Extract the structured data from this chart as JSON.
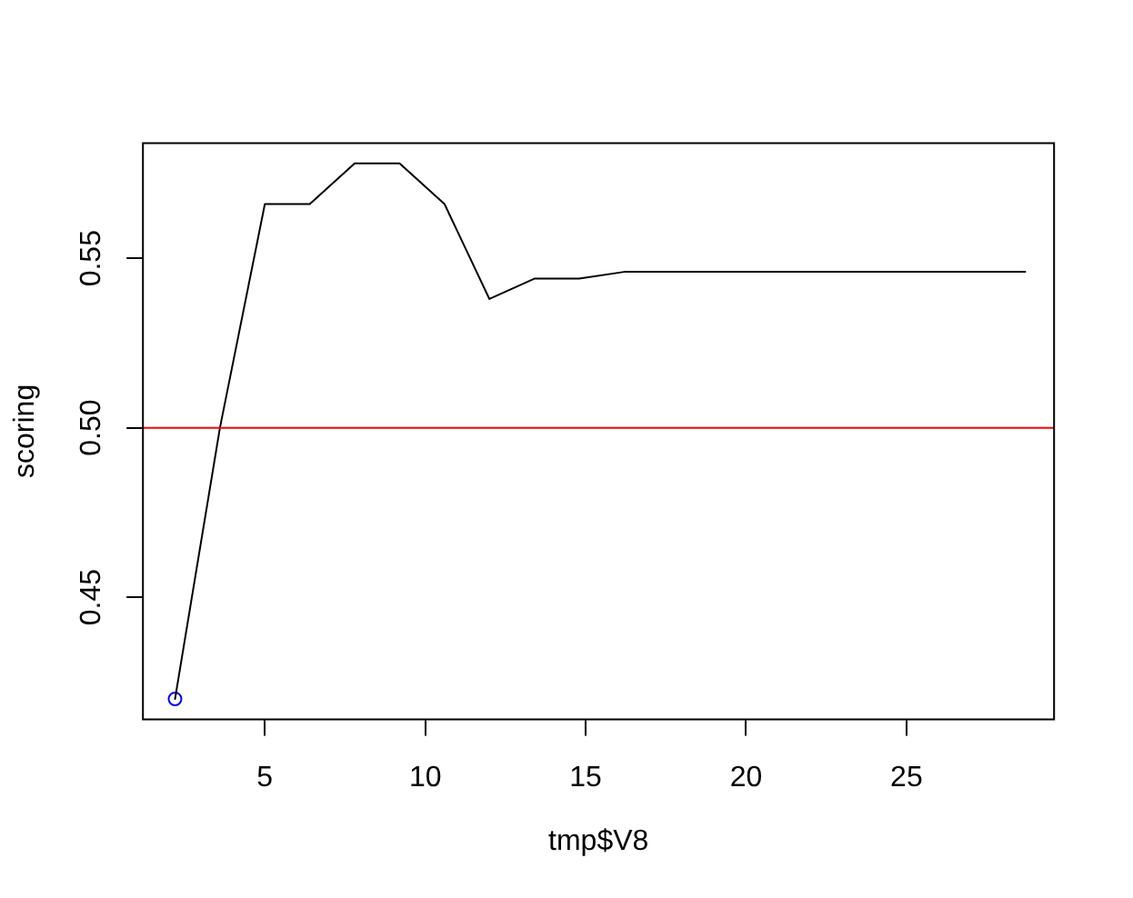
{
  "chart_data": {
    "type": "line",
    "xlabel": "tmp$V8",
    "ylabel": "scoring",
    "xlim": [
      1.2,
      29.6
    ],
    "xticks": [
      5,
      10,
      15,
      20,
      25
    ],
    "ylim": [
      0.414,
      0.584
    ],
    "yticks": [
      {
        "value": 0.45,
        "label": "0.45"
      },
      {
        "value": 0.5,
        "label": "0.50"
      },
      {
        "value": 0.55,
        "label": "0.55"
      }
    ],
    "marker": "none",
    "series": [
      {
        "color": "#000000",
        "x": [
          2.2,
          3.6,
          5.0,
          6.4,
          7.8,
          9.2,
          10.6,
          12.0,
          13.4,
          14.8,
          16.2,
          28.7
        ],
        "values": [
          0.42,
          0.5,
          0.566,
          0.566,
          0.578,
          0.578,
          0.566,
          0.538,
          0.544,
          0.544,
          0.546,
          0.546
        ]
      },
      {
        "type": "scatter",
        "color": "#0000ff",
        "marker": "circle",
        "x": [
          2.2
        ],
        "values": [
          0.42
        ]
      }
    ],
    "ref_lines": [
      {
        "axis": "y",
        "value": 0.5,
        "color": "#ff0000"
      }
    ]
  }
}
